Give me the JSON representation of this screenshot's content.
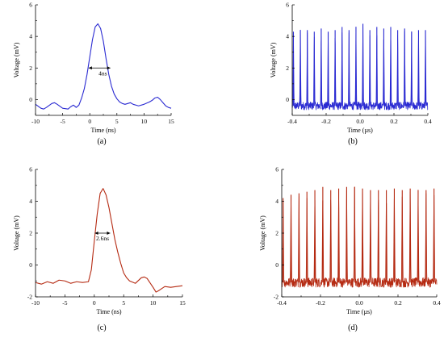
{
  "chart_data": [
    {
      "type": "line",
      "panel_label": "(a)",
      "xlabel": "Time (ns)",
      "ylabel": "Voltage (mV)",
      "xlim": [
        -10,
        15
      ],
      "ylim": [
        -1,
        6
      ],
      "xticks": [
        "-10",
        "-5",
        "0",
        "5",
        "10",
        "15"
      ],
      "yticks": [
        "0",
        "2",
        "4",
        "6"
      ],
      "color": "#2a2ad2",
      "annotation": {
        "text": "4ns",
        "x1": -0.2,
        "x2": 3.8,
        "y": 2.0
      },
      "series": [
        {
          "x": [
            -10,
            -9,
            -8.5,
            -8,
            -7,
            -6.5,
            -6,
            -5,
            -4,
            -3.5,
            -3,
            -2.5,
            -2,
            -1.5,
            -1,
            -0.5,
            0,
            0.5,
            1,
            1.5,
            2,
            2.5,
            3,
            3.5,
            4,
            4.5,
            5,
            5.5,
            6,
            6.5,
            7,
            7.5,
            8,
            9,
            10,
            11,
            11.5,
            12,
            12.5,
            13,
            13.5,
            14,
            14.5,
            15
          ],
          "y": [
            -0.3,
            -0.55,
            -0.6,
            -0.5,
            -0.25,
            -0.2,
            -0.3,
            -0.55,
            -0.6,
            -0.45,
            -0.35,
            -0.5,
            -0.35,
            0.1,
            0.7,
            1.6,
            2.7,
            3.8,
            4.6,
            4.8,
            4.5,
            3.7,
            2.6,
            1.6,
            0.85,
            0.35,
            0.05,
            -0.15,
            -0.25,
            -0.3,
            -0.25,
            -0.2,
            -0.3,
            -0.4,
            -0.3,
            -0.15,
            -0.05,
            0.1,
            0.15,
            0.0,
            -0.2,
            -0.4,
            -0.5,
            -0.55
          ]
        }
      ]
    },
    {
      "type": "line",
      "panel_label": "(b)",
      "xlabel": "Time (µs)",
      "ylabel": "Voltage (mV)",
      "xlim": [
        -0.4,
        0.4
      ],
      "ylim": [
        -1,
        6
      ],
      "xticks": [
        "-0.4",
        "-0.2",
        "0.0",
        "0.2",
        "0.4"
      ],
      "yticks": [
        "0",
        "2",
        "4",
        "6"
      ],
      "color": "#2a2ad2",
      "baseline": -0.4,
      "noise": 0.25,
      "pulse_width": 0.004,
      "series": [
        {
          "pulse_x": [
            -0.393,
            -0.352,
            -0.311,
            -0.27,
            -0.229,
            -0.188,
            -0.147,
            -0.106,
            -0.065,
            -0.024,
            0.017,
            0.058,
            0.099,
            0.14,
            0.181,
            0.222,
            0.263,
            0.304,
            0.345,
            0.386
          ],
          "pulse_y": [
            4.3,
            4.4,
            4.4,
            4.3,
            4.5,
            4.3,
            4.4,
            4.6,
            4.4,
            4.6,
            4.8,
            4.4,
            4.6,
            4.5,
            4.6,
            4.4,
            4.5,
            4.3,
            4.4,
            4.4
          ]
        }
      ]
    },
    {
      "type": "line",
      "panel_label": "(c)",
      "xlabel": "Time (ns)",
      "ylabel": "Voltage (mV)",
      "xlim": [
        -10,
        15
      ],
      "ylim": [
        -2,
        6
      ],
      "xticks": [
        "-10",
        "-5",
        "0",
        "5",
        "10",
        "15"
      ],
      "yticks": [
        "-2",
        "0",
        "2",
        "4",
        "6"
      ],
      "color": "#b52a12",
      "annotation": {
        "text": "2.6ns",
        "x1": 0.1,
        "x2": 2.7,
        "y": 2.0
      },
      "series": [
        {
          "x": [
            -10,
            -9,
            -8,
            -7,
            -6,
            -5,
            -4,
            -3,
            -2,
            -1,
            -0.5,
            0,
            0.5,
            1,
            1.5,
            2,
            2.5,
            3,
            3.5,
            4,
            4.5,
            5,
            5.5,
            6,
            7,
            8,
            8.5,
            9,
            10,
            10.5,
            11,
            12,
            13,
            14,
            15
          ],
          "y": [
            -1.1,
            -1.2,
            -1.05,
            -1.15,
            -0.95,
            -1.0,
            -1.15,
            -1.05,
            -1.1,
            -1.05,
            -0.3,
            1.5,
            3.2,
            4.5,
            4.8,
            4.4,
            3.6,
            2.6,
            1.6,
            0.8,
            0.1,
            -0.5,
            -0.8,
            -1.0,
            -1.15,
            -0.8,
            -0.75,
            -0.85,
            -1.4,
            -1.7,
            -1.6,
            -1.35,
            -1.4,
            -1.35,
            -1.3
          ]
        }
      ]
    },
    {
      "type": "line",
      "panel_label": "(d)",
      "xlabel": "Time (µs)",
      "ylabel": "Voltage (mV)",
      "xlim": [
        -0.4,
        0.4
      ],
      "ylim": [
        -2,
        6
      ],
      "xticks": [
        "-0.4",
        "-0.2",
        "0.0",
        "0.2",
        "0.4"
      ],
      "yticks": [
        "-2",
        "0",
        "2",
        "4",
        "6"
      ],
      "color": "#b52a12",
      "baseline": -1.1,
      "noise": 0.3,
      "pulse_width": 0.004,
      "series": [
        {
          "pulse_x": [
            -0.393,
            -0.352,
            -0.311,
            -0.27,
            -0.229,
            -0.188,
            -0.147,
            -0.106,
            -0.065,
            -0.024,
            0.017,
            0.058,
            0.099,
            0.14,
            0.181,
            0.222,
            0.263,
            0.304,
            0.345,
            0.386
          ],
          "pulse_y": [
            4.2,
            4.4,
            4.5,
            4.6,
            4.7,
            4.9,
            4.7,
            4.8,
            4.9,
            4.9,
            4.8,
            4.7,
            4.7,
            4.7,
            4.8,
            4.7,
            4.8,
            4.7,
            4.7,
            4.8
          ]
        }
      ]
    }
  ]
}
